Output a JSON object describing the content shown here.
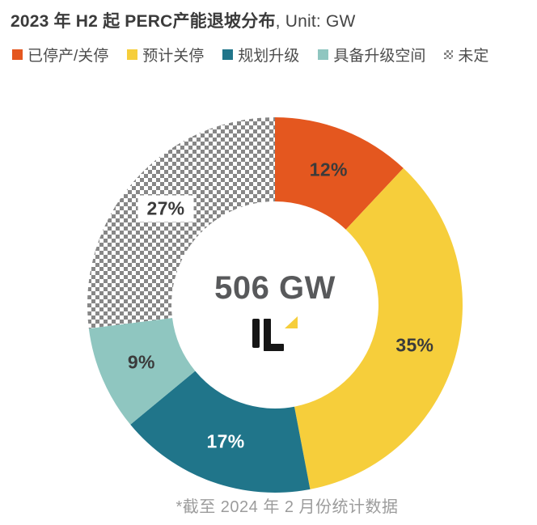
{
  "title": {
    "main": "2023 年 H2 起 PERC产能退坡分布",
    "suffix": ", Unit: GW"
  },
  "legend": {
    "items": [
      {
        "label": "已停产/关停"
      },
      {
        "label": "预计关停"
      },
      {
        "label": "规划升级"
      },
      {
        "label": "具备升级空间"
      },
      {
        "label": "未定"
      }
    ]
  },
  "chart_data": {
    "type": "pie",
    "subtype": "donut",
    "title": "2023 年 H2 起 PERC产能退坡分布, Unit: GW",
    "unit": "GW",
    "center_label": "506 GW",
    "total_gw": 506,
    "start_angle_deg": 0,
    "direction": "clockwise",
    "outer_radius": 232,
    "inner_radius": 128,
    "label_radius": 180,
    "legend_position": "top",
    "slices": [
      {
        "label": "已停产/关停",
        "value_pct": 12,
        "color": "#e4571f",
        "text_color": "#3b3b3b",
        "chip": false
      },
      {
        "label": "预计关停",
        "value_pct": 35,
        "color": "#f6ce3b",
        "text_color": "#3b3b3b",
        "chip": false
      },
      {
        "label": "规划升级",
        "value_pct": 17,
        "color": "#20758a",
        "text_color": "#ffffff",
        "chip": false
      },
      {
        "label": "具备升级空间",
        "value_pct": 9,
        "color": "#8fc6c0",
        "text_color": "#3b3b3b",
        "chip": false
      },
      {
        "label": "未定",
        "value_pct": 27,
        "pattern": "checker",
        "pattern_colors": [
          "#878787",
          "#ffffff"
        ],
        "text_color": "#3b3b3b",
        "chip": true
      }
    ]
  },
  "logo_colors": {
    "black": "#161616",
    "yellow": "#f6ce3b"
  },
  "footnote": "*截至 2024 年 2 月份统计数据"
}
